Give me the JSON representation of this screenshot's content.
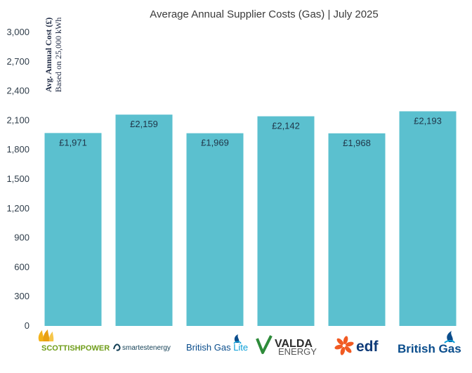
{
  "chart_data": {
    "type": "bar",
    "title": "Average Annual Supplier Costs (Gas) | July 2025",
    "ylabel_line1": "Avg. Annual Cost (£)",
    "ylabel_line2": "Based on 25,000 kWh",
    "ylim": [
      0,
      3000
    ],
    "y_ticks": [
      "0",
      "300",
      "600",
      "900",
      "1,200",
      "1,500",
      "1,800",
      "2,100",
      "2,400",
      "2,700",
      "3,000"
    ],
    "bar_color": "#5bc0cf",
    "categories": [
      "SCOTTISHPOWER",
      "smartestenergy",
      "British Gas Lite",
      "VALDA ENERGY",
      "EDF",
      "British Gas"
    ],
    "values": [
      1971,
      2159,
      1969,
      2142,
      1968,
      2193
    ],
    "value_labels": [
      "£1,971",
      "£2,159",
      "£1,969",
      "£2,142",
      "£1,968",
      "£2,193"
    ],
    "grid": false
  },
  "logos": [
    {
      "name": "scottishpower",
      "text": "SCOTTISHPOWER",
      "icon": "flame-icon",
      "color": "#6f9d1a"
    },
    {
      "name": "smartestenergy",
      "text": "smartestenergy",
      "icon": "wave-icon",
      "color": "#123f55"
    },
    {
      "name": "british-gas-lite",
      "text1": "British Gas ",
      "text2": "Lite",
      "icon": "flame-icon",
      "color": "#0a4d8c"
    },
    {
      "name": "valda-energy",
      "text1": "VALDA",
      "text2": "ENERGY",
      "icon": "v-check-icon",
      "color": "#2e8b3a"
    },
    {
      "name": "edf",
      "text": "edf",
      "icon": "sun-flower-icon",
      "color": "#f15a22"
    },
    {
      "name": "british-gas",
      "text": "British Gas",
      "icon": "flame-icon",
      "color": "#0a4d8c"
    }
  ]
}
